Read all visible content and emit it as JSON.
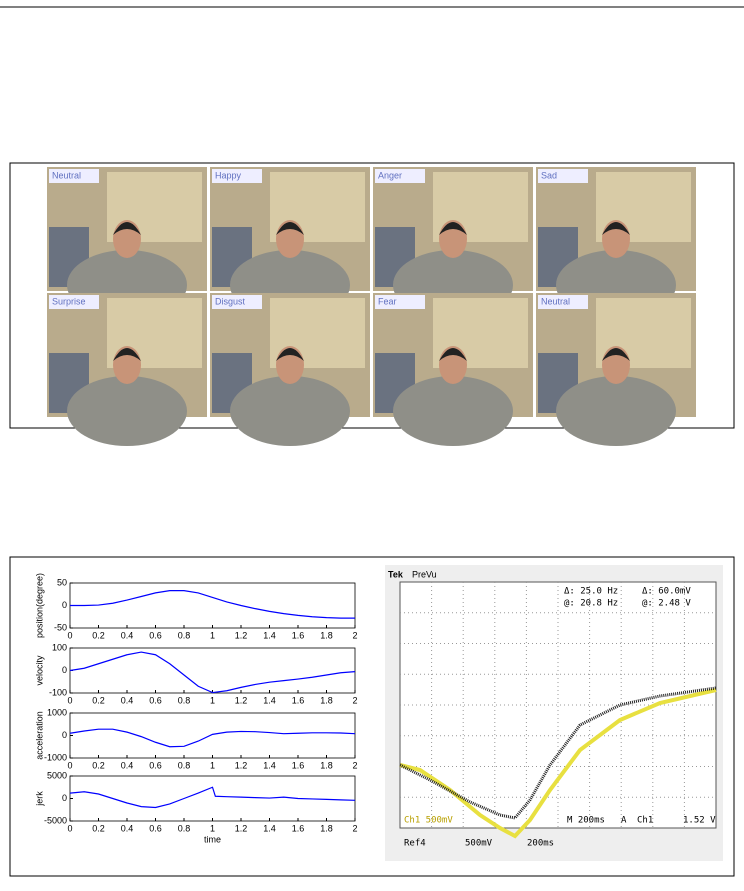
{
  "photos": {
    "labels": [
      "Neutral",
      "Happy",
      "Anger",
      "Sad",
      "Surprise",
      "Disgust",
      "Fear",
      "Neutral"
    ]
  },
  "chart_data": [
    {
      "type": "line",
      "ylabel": "position(degree)",
      "x": [
        0,
        0.1,
        0.2,
        0.3,
        0.4,
        0.5,
        0.6,
        0.7,
        0.8,
        0.9,
        1,
        1.1,
        1.2,
        1.3,
        1.4,
        1.5,
        1.6,
        1.7,
        1.8,
        1.9,
        2
      ],
      "values": [
        0,
        0,
        1,
        5,
        12,
        20,
        28,
        33,
        33,
        28,
        18,
        8,
        0,
        -7,
        -13,
        -18,
        -22,
        -25,
        -27,
        -28,
        -28
      ],
      "color": "#0000ff",
      "xlim": [
        0,
        2
      ],
      "ylim": [
        -50,
        50
      ],
      "xticks": [
        0,
        0.2,
        0.4,
        0.6,
        0.8,
        1,
        1.2,
        1.4,
        1.6,
        1.8,
        2
      ],
      "yticks": [
        -50,
        0,
        50
      ]
    },
    {
      "type": "line",
      "ylabel": "velocity",
      "x": [
        0,
        0.1,
        0.2,
        0.3,
        0.4,
        0.5,
        0.6,
        0.7,
        0.8,
        0.9,
        1,
        1.1,
        1.2,
        1.3,
        1.4,
        1.5,
        1.6,
        1.7,
        1.8,
        1.9,
        2
      ],
      "values": [
        0,
        10,
        30,
        50,
        70,
        82,
        70,
        30,
        -20,
        -70,
        -98,
        -90,
        -75,
        -62,
        -52,
        -45,
        -38,
        -30,
        -20,
        -10,
        -5
      ],
      "color": "#0000ff",
      "xlim": [
        0,
        2
      ],
      "ylim": [
        -100,
        100
      ],
      "xticks": [
        0,
        0.2,
        0.4,
        0.6,
        0.8,
        1,
        1.2,
        1.4,
        1.6,
        1.8,
        2
      ],
      "yticks": [
        -100,
        0,
        100
      ]
    },
    {
      "type": "line",
      "ylabel": "acceleration",
      "x": [
        0,
        0.1,
        0.2,
        0.3,
        0.4,
        0.5,
        0.6,
        0.7,
        0.8,
        0.9,
        1,
        1.1,
        1.2,
        1.3,
        1.4,
        1.5,
        1.6,
        1.7,
        1.8,
        1.9,
        2
      ],
      "values": [
        100,
        200,
        280,
        280,
        150,
        -50,
        -300,
        -500,
        -480,
        -250,
        50,
        150,
        180,
        170,
        130,
        80,
        100,
        120,
        120,
        110,
        80
      ],
      "color": "#0000ff",
      "xlim": [
        0,
        2
      ],
      "ylim": [
        -1000,
        1000
      ],
      "xticks": [
        0,
        0.2,
        0.4,
        0.6,
        0.8,
        1,
        1.2,
        1.4,
        1.6,
        1.8,
        2
      ],
      "yticks": [
        -1000,
        0,
        1000
      ]
    },
    {
      "type": "line",
      "ylabel": "jerk",
      "xlabel": "time",
      "x": [
        0,
        0.1,
        0.2,
        0.3,
        0.4,
        0.5,
        0.6,
        0.7,
        0.8,
        0.9,
        1,
        1.02,
        1.1,
        1.2,
        1.3,
        1.4,
        1.5,
        1.6,
        1.7,
        1.8,
        1.9,
        2
      ],
      "values": [
        1200,
        1500,
        1000,
        0,
        -1000,
        -1800,
        -2000,
        -1200,
        0,
        1200,
        2500,
        500,
        400,
        300,
        200,
        100,
        300,
        0,
        -100,
        -200,
        -300,
        -400
      ],
      "color": "#0000ff",
      "xlim": [
        0,
        2
      ],
      "ylim": [
        -5000,
        5000
      ],
      "xticks": [
        0,
        0.2,
        0.4,
        0.6,
        0.8,
        1,
        1.2,
        1.4,
        1.6,
        1.8,
        2
      ],
      "yticks": [
        -5000,
        0,
        5000
      ]
    }
  ],
  "scope": {
    "brand": "Tek",
    "mode": "PreVu",
    "d1": "Δ: 25.0 Hz",
    "a1": "@: 20.8 Hz",
    "d2": "Δ: 60.0mV",
    "a2": "@: 2.48 V",
    "ch": "Ch1 500mV",
    "time": "M 200ms",
    "trig": "A",
    "trigch": "Ch1",
    "level": "1.52 V",
    "ref": "Ref4",
    "refv": "500mV",
    "reft": "200ms"
  }
}
